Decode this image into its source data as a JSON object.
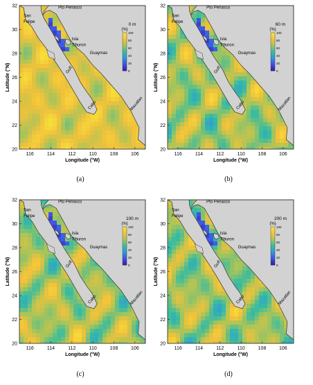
{
  "figure": {
    "captions": [
      "(a)",
      "(b)",
      "(c)",
      "(d)"
    ]
  },
  "chart_data": [
    {
      "type": "heatmap",
      "panel": "(a)",
      "depth_label": "0 m",
      "unit_label": "(%)",
      "colorbar": {
        "range": [
          0,
          100
        ],
        "ticks": [
          0,
          20,
          40,
          60,
          80,
          100
        ],
        "colors": [
          "#3a1fb0",
          "#3c58e6",
          "#2f9bd6",
          "#38bca0",
          "#a8c45a",
          "#f2c23a",
          "#f7e03a"
        ]
      },
      "xlabel": "Longitude (°W)",
      "ylabel": "Latitude (°N)",
      "xlim": [
        117,
        105
      ],
      "ylim": [
        20,
        32
      ],
      "xticks": [
        116,
        114,
        112,
        110,
        108,
        106
      ],
      "yticks": [
        20,
        22,
        24,
        26,
        28,
        30,
        32
      ],
      "places": [
        "San Felipe",
        "Pto Peñasco",
        "Isla Tiburon",
        "Guaymas",
        "Mazatlan",
        "Cabo",
        "Gulf"
      ],
      "colors": {
        "land": "#d2d2d2",
        "coast": "#333333",
        "high": "#f2c23a",
        "mid": "#3cb8a0",
        "low": "#3b2fc0"
      }
    },
    {
      "type": "heatmap",
      "panel": "(b)",
      "depth_label": "60 m",
      "unit_label": "(%)",
      "colorbar": {
        "range": [
          0,
          100
        ],
        "ticks": [
          0,
          20,
          40,
          60,
          80,
          100
        ]
      },
      "xlabel": "Longitude (°W)",
      "ylabel": "Latitude (°N)",
      "xlim": [
        117,
        105
      ],
      "ylim": [
        20,
        32
      ],
      "xticks": [
        116,
        114,
        112,
        110,
        108,
        106
      ],
      "yticks": [
        20,
        22,
        24,
        26,
        28,
        30,
        32
      ],
      "places": [
        "San Felipe",
        "Pto Peñasco",
        "Isla Tiburon",
        "Guaymas",
        "Mazatlan",
        "Cabo",
        "Gulf"
      ]
    },
    {
      "type": "heatmap",
      "panel": "(c)",
      "depth_label": "100 m",
      "unit_label": "(%)",
      "colorbar": {
        "range": [
          0,
          100
        ],
        "ticks": [
          0,
          20,
          40,
          60,
          80,
          100
        ]
      },
      "xlabel": "Longitude (°W)",
      "ylabel": "Latitude (°N)",
      "xlim": [
        117,
        105
      ],
      "ylim": [
        20,
        32
      ],
      "xticks": [
        116,
        114,
        112,
        110,
        108,
        106
      ],
      "yticks": [
        20,
        22,
        24,
        26,
        28,
        30,
        32
      ],
      "places": [
        "San Felipe",
        "Pto Peñasco",
        "Isla Tiburon",
        "Guaymas",
        "Mazatlan",
        "Cabo",
        "Gulf"
      ]
    },
    {
      "type": "heatmap",
      "panel": "(d)",
      "depth_label": "200 m",
      "unit_label": "(%)",
      "colorbar": {
        "range": [
          0,
          100
        ],
        "ticks": [
          0,
          20,
          40,
          60,
          80,
          100
        ]
      },
      "xlabel": "Longitude (°W)",
      "ylabel": "Latitude (°N)",
      "xlim": [
        117,
        105
      ],
      "ylim": [
        20,
        32
      ],
      "xticks": [
        116,
        114,
        112,
        110,
        108,
        106
      ],
      "yticks": [
        20,
        22,
        24,
        26,
        28,
        30,
        32
      ],
      "places": [
        "San Felipe",
        "Pto Peñasco",
        "Isla Tiburon",
        "Guaymas",
        "Mazatlan",
        "Cabo",
        "Gulf"
      ]
    }
  ]
}
